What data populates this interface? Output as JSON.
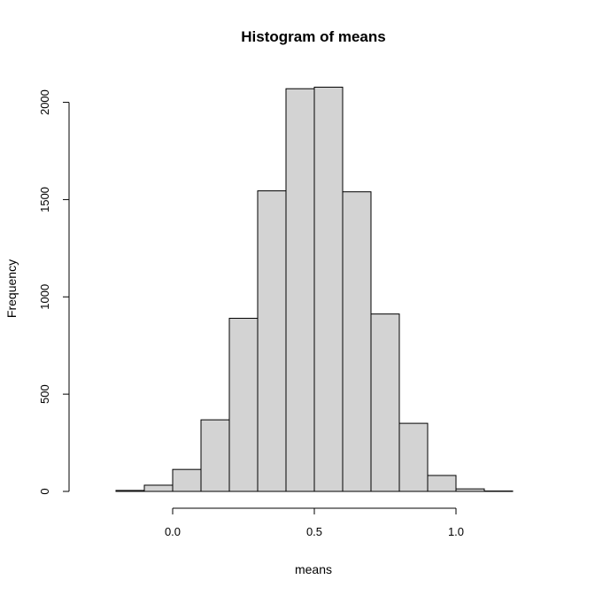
{
  "chart_data": {
    "type": "bar",
    "title": "Histogram of means",
    "xlabel": "means",
    "ylabel": "Frequency",
    "bins": [
      {
        "start": -0.2,
        "end": -0.1,
        "count": 5
      },
      {
        "start": -0.1,
        "end": 0.0,
        "count": 32
      },
      {
        "start": 0.0,
        "end": 0.1,
        "count": 113
      },
      {
        "start": 0.1,
        "end": 0.2,
        "count": 368
      },
      {
        "start": 0.2,
        "end": 0.3,
        "count": 890
      },
      {
        "start": 0.3,
        "end": 0.4,
        "count": 1545
      },
      {
        "start": 0.4,
        "end": 0.5,
        "count": 2070
      },
      {
        "start": 0.5,
        "end": 0.6,
        "count": 2078
      },
      {
        "start": 0.6,
        "end": 0.7,
        "count": 1540
      },
      {
        "start": 0.7,
        "end": 0.8,
        "count": 912
      },
      {
        "start": 0.8,
        "end": 0.9,
        "count": 350
      },
      {
        "start": 0.9,
        "end": 1.0,
        "count": 82
      },
      {
        "start": 1.0,
        "end": 1.1,
        "count": 13
      },
      {
        "start": 1.1,
        "end": 1.2,
        "count": 2
      }
    ],
    "xlim": [
      -0.3,
      1.3
    ],
    "ylim": [
      0,
      2080
    ],
    "xticks": [
      0.0,
      0.5,
      1.0
    ],
    "xtick_labels": [
      "0.0",
      "0.5",
      "1.0"
    ],
    "yticks": [
      0,
      500,
      1000,
      1500,
      2000
    ],
    "ytick_labels": [
      "0",
      "500",
      "1000",
      "1500",
      "2000"
    ],
    "grid": false,
    "bar_color": "#d3d3d3",
    "edge_color": "#000000"
  }
}
